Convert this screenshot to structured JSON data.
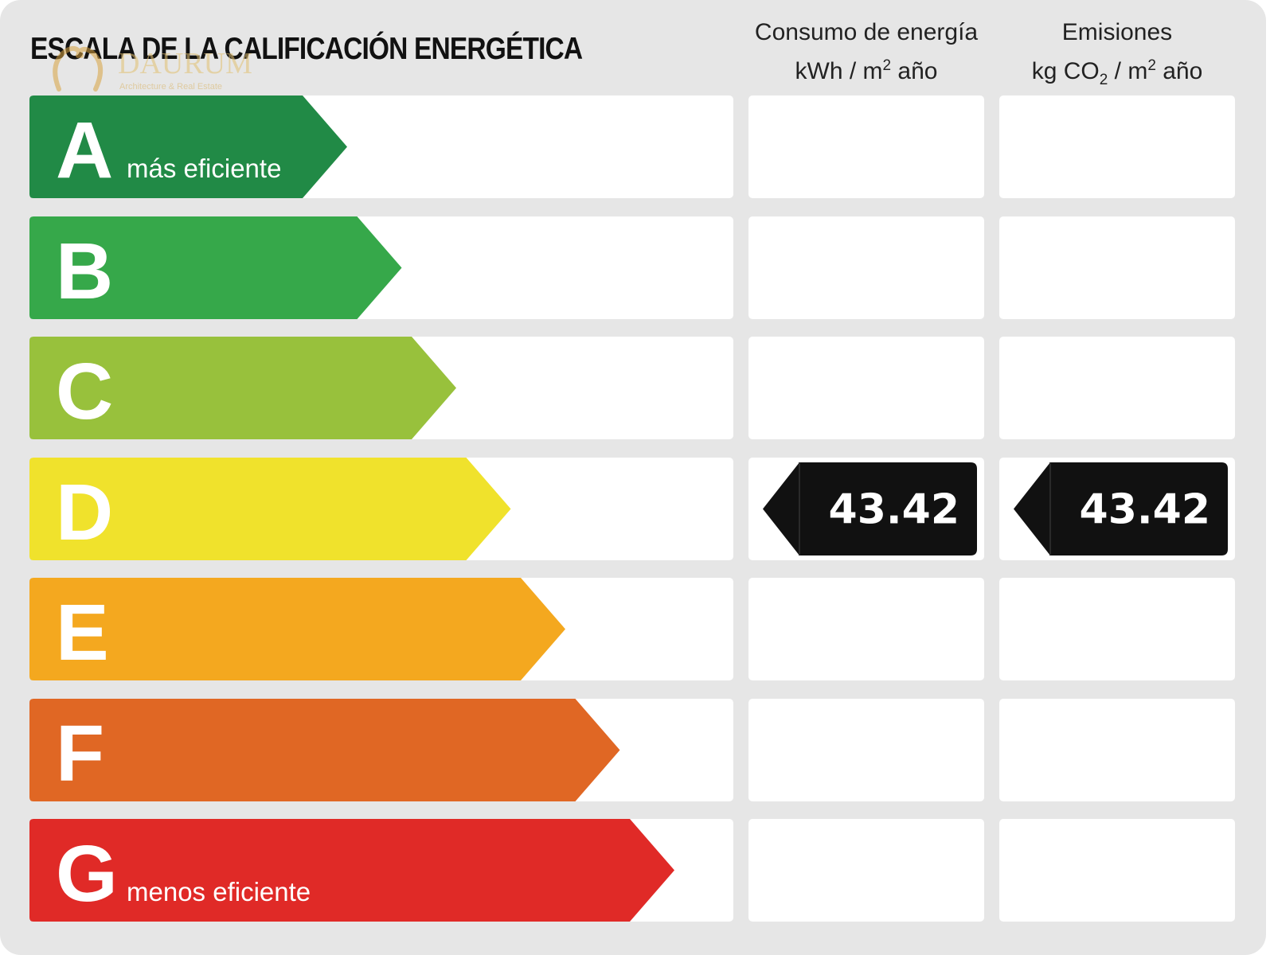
{
  "title": "ESCALA DE LA CALIFICACIÓN ENERGÉTICA",
  "columns": {
    "consumo": {
      "line1": "Consumo de energía",
      "unit_a": "kWh / m",
      "unit_sup": "2",
      "unit_b": " año"
    },
    "emisiones": {
      "line1": "Emisiones",
      "unit_a": "kg CO",
      "unit_sub": "2",
      "unit_mid": " / m",
      "unit_sup": "2",
      "unit_b": " año"
    }
  },
  "watermark": {
    "text": "DAURUM",
    "tagline": "Architecture & Real Estate"
  },
  "chart_data": {
    "type": "table",
    "title": "ESCALA DE LA CALIFICACIÓN ENERGÉTICA",
    "categories": [
      "A",
      "B",
      "C",
      "D",
      "E",
      "F",
      "G"
    ],
    "category_notes": {
      "A": "más eficiente",
      "G": "menos eficiente"
    },
    "colors": {
      "A": "#218a46",
      "B": "#36a84a",
      "C": "#98c13c",
      "D": "#f0e22c",
      "E": "#f4a81f",
      "F": "#e06724",
      "G": "#e02a27"
    },
    "series": [
      {
        "name": "Consumo de energía kWh / m2 año",
        "rating": "D",
        "value": 43.42
      },
      {
        "name": "Emisiones kg CO2 / m2 año",
        "rating": "D",
        "value": 43.42
      }
    ]
  }
}
